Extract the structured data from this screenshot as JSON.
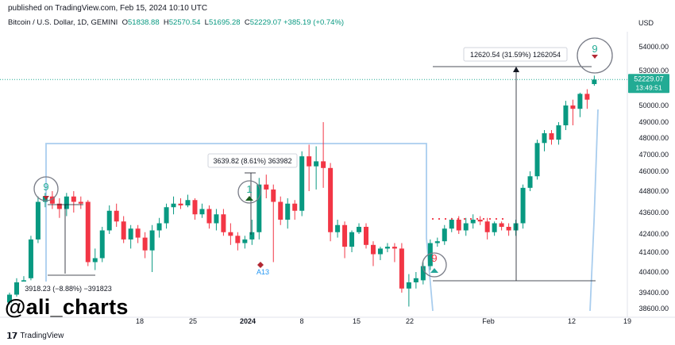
{
  "header": {
    "published": "published on TradingView.com, Feb 15, 2024 10:10 UTC",
    "symbol": "Bitcoin / U.S. Dollar, 1D, GEMINI",
    "ohlc": {
      "O": "51838.88",
      "H": "52570.54",
      "L": "51695.28",
      "C": "52229.07",
      "change": "+385.19 (+0.74%)"
    },
    "currency": "USD"
  },
  "watermark": "@ali_charts",
  "brand": "TradingView",
  "colors": {
    "up": "#089981",
    "down": "#f23645",
    "sequential": "#22ab94",
    "channel": "#a9cdee",
    "price_line": "#22ab94"
  },
  "chart_data": {
    "type": "candlestick",
    "price_scale": {
      "min": 38000,
      "max": 55000,
      "ticks": [
        "54000.00",
        "53000.00",
        "50000.00",
        "49000.00",
        "48000.00",
        "47000.00",
        "46000.00",
        "44800.00",
        "43600.00",
        "42400.00",
        "41400.00",
        "40400.00",
        "39400.00",
        "38600.00"
      ],
      "tick_values": [
        54000,
        53000,
        50000,
        49000,
        48000,
        47000,
        46000,
        44800,
        43600,
        42400,
        41400,
        40400,
        39400,
        38600
      ]
    },
    "time_axis": {
      "labels": [
        "18",
        "25",
        "2024",
        "8",
        "15",
        "22",
        "Feb",
        "12",
        "19"
      ]
    },
    "last_price": {
      "value": 52229.07,
      "label": "52229.07",
      "countdown": "13:49:51"
    },
    "candles": [
      {
        "o": 38900,
        "h": 39400,
        "l": 38800,
        "c": 39300
      },
      {
        "o": 39300,
        "h": 40100,
        "l": 39200,
        "c": 39900
      },
      {
        "o": 39900,
        "h": 40200,
        "l": 39700,
        "c": 40000
      },
      {
        "o": 40100,
        "h": 42300,
        "l": 40000,
        "c": 42100
      },
      {
        "o": 42100,
        "h": 44500,
        "l": 41900,
        "c": 44200
      },
      {
        "o": 44200,
        "h": 44700,
        "l": 43900,
        "c": 44500
      },
      {
        "o": 44500,
        "h": 44800,
        "l": 43800,
        "c": 44100
      },
      {
        "o": 44100,
        "h": 44400,
        "l": 43300,
        "c": 43800
      },
      {
        "o": 43800,
        "h": 44700,
        "l": 43400,
        "c": 44500
      },
      {
        "o": 44500,
        "h": 44800,
        "l": 43600,
        "c": 44200
      },
      {
        "o": 44200,
        "h": 44500,
        "l": 43800,
        "c": 44100
      },
      {
        "o": 44200,
        "h": 44300,
        "l": 40700,
        "c": 40900
      },
      {
        "o": 40900,
        "h": 41600,
        "l": 40500,
        "c": 41100
      },
      {
        "o": 41100,
        "h": 42800,
        "l": 40900,
        "c": 42600
      },
      {
        "o": 42600,
        "h": 44000,
        "l": 42400,
        "c": 43700
      },
      {
        "o": 43700,
        "h": 44100,
        "l": 42800,
        "c": 43100
      },
      {
        "o": 43100,
        "h": 43400,
        "l": 41900,
        "c": 42100
      },
      {
        "o": 42100,
        "h": 42900,
        "l": 41600,
        "c": 42700
      },
      {
        "o": 42700,
        "h": 42900,
        "l": 41900,
        "c": 42200
      },
      {
        "o": 42200,
        "h": 42500,
        "l": 41100,
        "c": 41500
      },
      {
        "o": 41500,
        "h": 42900,
        "l": 40400,
        "c": 42600
      },
      {
        "o": 42600,
        "h": 43300,
        "l": 42200,
        "c": 43000
      },
      {
        "o": 43000,
        "h": 44100,
        "l": 42700,
        "c": 43900
      },
      {
        "o": 43900,
        "h": 44500,
        "l": 43500,
        "c": 44100
      },
      {
        "o": 44100,
        "h": 44400,
        "l": 43800,
        "c": 44000
      },
      {
        "o": 44000,
        "h": 44600,
        "l": 43900,
        "c": 44300
      },
      {
        "o": 44300,
        "h": 44400,
        "l": 43200,
        "c": 43500
      },
      {
        "o": 43500,
        "h": 44100,
        "l": 43300,
        "c": 43800
      },
      {
        "o": 43800,
        "h": 44000,
        "l": 42700,
        "c": 43000
      },
      {
        "o": 43000,
        "h": 43800,
        "l": 42600,
        "c": 43500
      },
      {
        "o": 43500,
        "h": 43800,
        "l": 42300,
        "c": 42500
      },
      {
        "o": 42500,
        "h": 43000,
        "l": 41800,
        "c": 42300
      },
      {
        "o": 42300,
        "h": 42500,
        "l": 41500,
        "c": 41900
      },
      {
        "o": 41900,
        "h": 42300,
        "l": 41600,
        "c": 42100
      },
      {
        "o": 42100,
        "h": 43200,
        "l": 41800,
        "c": 42500
      },
      {
        "o": 42500,
        "h": 45600,
        "l": 42100,
        "c": 45200
      },
      {
        "o": 45200,
        "h": 45800,
        "l": 44400,
        "c": 44900
      },
      {
        "o": 44900,
        "h": 45200,
        "l": 40900,
        "c": 44200
      },
      {
        "o": 44200,
        "h": 44500,
        "l": 42900,
        "c": 43200
      },
      {
        "o": 43200,
        "h": 44400,
        "l": 42700,
        "c": 44100
      },
      {
        "o": 44100,
        "h": 44300,
        "l": 43200,
        "c": 43700
      },
      {
        "o": 43700,
        "h": 47200,
        "l": 43400,
        "c": 46900
      },
      {
        "o": 46900,
        "h": 47600,
        "l": 44800,
        "c": 46300
      },
      {
        "o": 46300,
        "h": 47500,
        "l": 44900,
        "c": 46600
      },
      {
        "o": 46600,
        "h": 49000,
        "l": 45000,
        "c": 46200
      },
      {
        "o": 46200,
        "h": 46500,
        "l": 42000,
        "c": 42500
      },
      {
        "o": 42500,
        "h": 43200,
        "l": 42200,
        "c": 42900
      },
      {
        "o": 42900,
        "h": 43100,
        "l": 41100,
        "c": 41700
      },
      {
        "o": 41700,
        "h": 42600,
        "l": 41400,
        "c": 42500
      },
      {
        "o": 42500,
        "h": 43000,
        "l": 42400,
        "c": 42800
      },
      {
        "o": 42800,
        "h": 43000,
        "l": 41600,
        "c": 41800
      },
      {
        "o": 41800,
        "h": 42000,
        "l": 40700,
        "c": 41300
      },
      {
        "o": 41300,
        "h": 41700,
        "l": 41000,
        "c": 41600
      },
      {
        "o": 41600,
        "h": 41900,
        "l": 41400,
        "c": 41700
      },
      {
        "o": 41700,
        "h": 41900,
        "l": 40900,
        "c": 41600
      },
      {
        "o": 41600,
        "h": 41900,
        "l": 39400,
        "c": 39600
      },
      {
        "o": 39600,
        "h": 40300,
        "l": 38700,
        "c": 39900
      },
      {
        "o": 39900,
        "h": 40400,
        "l": 39600,
        "c": 40100
      },
      {
        "o": 40000,
        "h": 40900,
        "l": 39800,
        "c": 40700
      },
      {
        "o": 40700,
        "h": 42100,
        "l": 40500,
        "c": 41900
      },
      {
        "o": 41900,
        "h": 42200,
        "l": 41700,
        "c": 42000
      },
      {
        "o": 42000,
        "h": 42900,
        "l": 41800,
        "c": 42700
      },
      {
        "o": 42700,
        "h": 43300,
        "l": 42500,
        "c": 43200
      },
      {
        "o": 43200,
        "h": 43400,
        "l": 42400,
        "c": 42600
      },
      {
        "o": 42600,
        "h": 43300,
        "l": 42300,
        "c": 43000
      },
      {
        "o": 43000,
        "h": 43500,
        "l": 42700,
        "c": 43200
      },
      {
        "o": 43200,
        "h": 43400,
        "l": 42900,
        "c": 43100
      },
      {
        "o": 43100,
        "h": 43300,
        "l": 42100,
        "c": 42500
      },
      {
        "o": 42500,
        "h": 43100,
        "l": 42300,
        "c": 43000
      },
      {
        "o": 43000,
        "h": 43100,
        "l": 42600,
        "c": 42800
      },
      {
        "o": 42800,
        "h": 43000,
        "l": 42300,
        "c": 42600
      },
      {
        "o": 42600,
        "h": 43200,
        "l": 42300,
        "c": 43000
      },
      {
        "o": 43000,
        "h": 45200,
        "l": 42700,
        "c": 45000
      },
      {
        "o": 45000,
        "h": 46000,
        "l": 44800,
        "c": 45700
      },
      {
        "o": 45700,
        "h": 47900,
        "l": 45500,
        "c": 47700
      },
      {
        "o": 47700,
        "h": 48500,
        "l": 47200,
        "c": 48300
      },
      {
        "o": 48300,
        "h": 48500,
        "l": 47600,
        "c": 47900
      },
      {
        "o": 47900,
        "h": 49000,
        "l": 47600,
        "c": 48800
      },
      {
        "o": 48800,
        "h": 50400,
        "l": 48500,
        "c": 50000
      },
      {
        "o": 50000,
        "h": 50500,
        "l": 48800,
        "c": 49800
      },
      {
        "o": 49800,
        "h": 51100,
        "l": 49300,
        "c": 51000
      },
      {
        "o": 51000,
        "h": 51400,
        "l": 49800,
        "c": 50500
      },
      {
        "o": 51840,
        "h": 52570,
        "l": 51695,
        "c": 52229
      }
    ],
    "annotations": {
      "measure_up": "12620.54 (31.59%) 1262054",
      "measure_mid": "3639.82 (8.61%) 363982",
      "measure_down": "3918.23 (−8.88%) −391823",
      "td_labels": [
        {
          "text": "9",
          "color": "#22ab94",
          "arrow": "down"
        },
        {
          "text": "1",
          "color": "#22ab94",
          "arrow": "up"
        },
        {
          "text": "9",
          "color": "#f23645",
          "arrow": "up"
        },
        {
          "text": "9",
          "color": "#22ab94",
          "arrow": "down"
        }
      ],
      "a13": "A13"
    }
  }
}
